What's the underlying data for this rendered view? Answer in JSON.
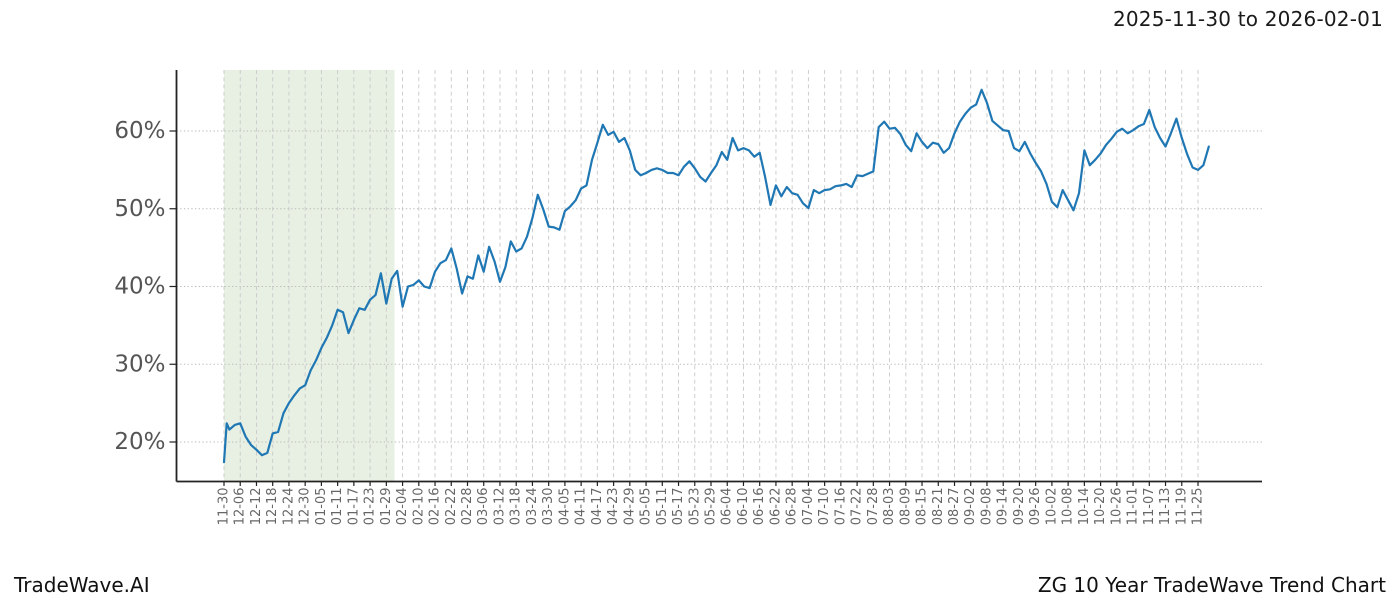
{
  "header": {
    "date_range": "2025-11-30 to 2026-02-01"
  },
  "footer": {
    "brand": "TradeWave.AI",
    "chart_title": "ZG 10 Year TradeWave Trend Chart"
  },
  "chart_data": {
    "type": "line",
    "title": "2025-11-30 to 2026-02-01",
    "xlabel": "",
    "ylabel": "",
    "y_ticks": [
      20,
      30,
      40,
      50,
      60
    ],
    "y_tick_labels": [
      "20%",
      "30%",
      "40%",
      "50%",
      "60%"
    ],
    "ylim": [
      15,
      67.8
    ],
    "grid": true,
    "legend_position": "none",
    "x_tick_interval_days": 6,
    "x_tick_labels": [
      "11-30",
      "12-06",
      "12-12",
      "12-18",
      "12-24",
      "12-30",
      "01-05",
      "01-11",
      "01-17",
      "01-23",
      "01-29",
      "02-04",
      "02-10",
      "02-16",
      "02-22",
      "02-28",
      "03-06",
      "03-12",
      "03-18",
      "03-24",
      "03-30",
      "04-05",
      "04-11",
      "04-17",
      "04-23",
      "04-29",
      "05-05",
      "05-11",
      "05-17",
      "05-23",
      "05-29",
      "06-04",
      "06-10",
      "06-16",
      "06-22",
      "06-28",
      "07-04",
      "07-10",
      "07-16",
      "07-22",
      "07-28",
      "08-03",
      "08-09",
      "08-15",
      "08-21",
      "08-27",
      "09-02",
      "09-08",
      "09-14",
      "09-20",
      "09-26",
      "10-02",
      "10-08",
      "10-14",
      "10-20",
      "10-26",
      "11-01",
      "11-07",
      "11-13",
      "11-19",
      "11-25"
    ],
    "highlight_region": {
      "start_label": "11-30",
      "end_label": "02-01",
      "start_day": 0,
      "end_day": 63,
      "color": "#e8f0e3"
    },
    "line_color": "#1f77b4",
    "series": [
      {
        "name": "trend",
        "color": "#1f77b4",
        "points": [
          [
            0,
            17.4
          ],
          [
            1,
            22.4
          ],
          [
            2,
            21.6
          ],
          [
            4,
            22.2
          ],
          [
            6,
            22.4
          ],
          [
            8,
            20.7
          ],
          [
            10,
            19.6
          ],
          [
            12,
            19.0
          ],
          [
            14,
            18.3
          ],
          [
            16,
            18.6
          ],
          [
            18,
            21.1
          ],
          [
            20,
            21.3
          ],
          [
            22,
            23.7
          ],
          [
            24,
            25.0
          ],
          [
            26,
            26.0
          ],
          [
            28,
            26.9
          ],
          [
            30,
            27.3
          ],
          [
            32,
            29.2
          ],
          [
            34,
            30.5
          ],
          [
            36,
            32.1
          ],
          [
            38,
            33.4
          ],
          [
            40,
            35.0
          ],
          [
            42,
            37.0
          ],
          [
            44,
            36.7
          ],
          [
            46,
            34.0
          ],
          [
            48,
            35.7
          ],
          [
            50,
            37.2
          ],
          [
            52,
            37.0
          ],
          [
            54,
            38.3
          ],
          [
            56,
            38.9
          ],
          [
            58,
            41.7
          ],
          [
            60,
            37.8
          ],
          [
            62,
            41.0
          ],
          [
            64,
            42.0
          ],
          [
            66,
            37.4
          ],
          [
            68,
            40.0
          ],
          [
            70,
            40.2
          ],
          [
            72,
            40.8
          ],
          [
            74,
            40.0
          ],
          [
            76,
            39.8
          ],
          [
            78,
            41.9
          ],
          [
            80,
            43.0
          ],
          [
            82,
            43.4
          ],
          [
            84,
            44.9
          ],
          [
            86,
            42.3
          ],
          [
            88,
            39.1
          ],
          [
            90,
            41.3
          ],
          [
            92,
            41.0
          ],
          [
            94,
            44.0
          ],
          [
            96,
            41.9
          ],
          [
            98,
            45.1
          ],
          [
            100,
            43.2
          ],
          [
            102,
            40.6
          ],
          [
            104,
            42.5
          ],
          [
            106,
            45.8
          ],
          [
            108,
            44.5
          ],
          [
            110,
            44.9
          ],
          [
            112,
            46.4
          ],
          [
            114,
            48.8
          ],
          [
            116,
            51.8
          ],
          [
            118,
            49.9
          ],
          [
            120,
            47.7
          ],
          [
            122,
            47.6
          ],
          [
            124,
            47.3
          ],
          [
            126,
            49.7
          ],
          [
            128,
            50.3
          ],
          [
            130,
            51.1
          ],
          [
            132,
            52.6
          ],
          [
            134,
            53.0
          ],
          [
            136,
            56.3
          ],
          [
            138,
            58.5
          ],
          [
            140,
            60.8
          ],
          [
            142,
            59.5
          ],
          [
            144,
            59.9
          ],
          [
            146,
            58.6
          ],
          [
            148,
            59.1
          ],
          [
            150,
            57.5
          ],
          [
            152,
            55.0
          ],
          [
            154,
            54.3
          ],
          [
            156,
            54.6
          ],
          [
            158,
            55.0
          ],
          [
            160,
            55.2
          ],
          [
            162,
            55.0
          ],
          [
            164,
            54.6
          ],
          [
            166,
            54.6
          ],
          [
            168,
            54.3
          ],
          [
            170,
            55.4
          ],
          [
            172,
            56.1
          ],
          [
            174,
            55.2
          ],
          [
            176,
            54.1
          ],
          [
            178,
            53.5
          ],
          [
            180,
            54.6
          ],
          [
            182,
            55.6
          ],
          [
            184,
            57.3
          ],
          [
            186,
            56.3
          ],
          [
            188,
            59.1
          ],
          [
            190,
            57.5
          ],
          [
            192,
            57.8
          ],
          [
            194,
            57.5
          ],
          [
            196,
            56.7
          ],
          [
            198,
            57.2
          ],
          [
            200,
            54.1
          ],
          [
            202,
            50.5
          ],
          [
            204,
            53.0
          ],
          [
            206,
            51.6
          ],
          [
            208,
            52.8
          ],
          [
            210,
            52.0
          ],
          [
            212,
            51.8
          ],
          [
            214,
            50.7
          ],
          [
            216,
            50.1
          ],
          [
            218,
            52.4
          ],
          [
            220,
            52.0
          ],
          [
            222,
            52.4
          ],
          [
            224,
            52.5
          ],
          [
            226,
            52.9
          ],
          [
            228,
            53.0
          ],
          [
            230,
            53.2
          ],
          [
            232,
            52.8
          ],
          [
            234,
            54.3
          ],
          [
            236,
            54.2
          ],
          [
            238,
            54.5
          ],
          [
            240,
            54.8
          ],
          [
            242,
            60.5
          ],
          [
            244,
            61.2
          ],
          [
            246,
            60.3
          ],
          [
            248,
            60.4
          ],
          [
            250,
            59.6
          ],
          [
            252,
            58.2
          ],
          [
            254,
            57.4
          ],
          [
            256,
            59.7
          ],
          [
            258,
            58.6
          ],
          [
            260,
            57.8
          ],
          [
            262,
            58.5
          ],
          [
            264,
            58.3
          ],
          [
            266,
            57.2
          ],
          [
            268,
            57.8
          ],
          [
            270,
            59.7
          ],
          [
            272,
            61.2
          ],
          [
            274,
            62.2
          ],
          [
            276,
            63.0
          ],
          [
            278,
            63.4
          ],
          [
            280,
            65.3
          ],
          [
            282,
            63.6
          ],
          [
            284,
            61.3
          ],
          [
            286,
            60.7
          ],
          [
            288,
            60.1
          ],
          [
            290,
            60.0
          ],
          [
            292,
            57.8
          ],
          [
            294,
            57.4
          ],
          [
            296,
            58.6
          ],
          [
            298,
            57.1
          ],
          [
            300,
            55.9
          ],
          [
            302,
            54.8
          ],
          [
            304,
            53.2
          ],
          [
            306,
            50.9
          ],
          [
            308,
            50.2
          ],
          [
            310,
            52.4
          ],
          [
            312,
            51.1
          ],
          [
            314,
            49.8
          ],
          [
            316,
            52.0
          ],
          [
            318,
            57.5
          ],
          [
            320,
            55.6
          ],
          [
            322,
            56.3
          ],
          [
            324,
            57.1
          ],
          [
            326,
            58.2
          ],
          [
            328,
            59.0
          ],
          [
            330,
            59.9
          ],
          [
            332,
            60.3
          ],
          [
            334,
            59.7
          ],
          [
            336,
            60.1
          ],
          [
            338,
            60.6
          ],
          [
            340,
            60.9
          ],
          [
            342,
            62.7
          ],
          [
            344,
            60.5
          ],
          [
            346,
            59.1
          ],
          [
            348,
            58.0
          ],
          [
            350,
            59.7
          ],
          [
            352,
            61.6
          ],
          [
            354,
            59.1
          ],
          [
            356,
            57.0
          ],
          [
            358,
            55.3
          ],
          [
            360,
            55.0
          ],
          [
            362,
            55.6
          ],
          [
            364,
            58.0
          ]
        ]
      }
    ]
  },
  "colors": {
    "line": "#1f77b4",
    "highlight_region": "#e8f0e3",
    "grid_vertical": "#c9c9c9",
    "grid_horizontal": "#bababa",
    "spine": "#222222",
    "x_tick_text": "#666666",
    "y_tick_text": "#555555",
    "title_text": "#1a1a1a",
    "footer_text": "#111111"
  }
}
